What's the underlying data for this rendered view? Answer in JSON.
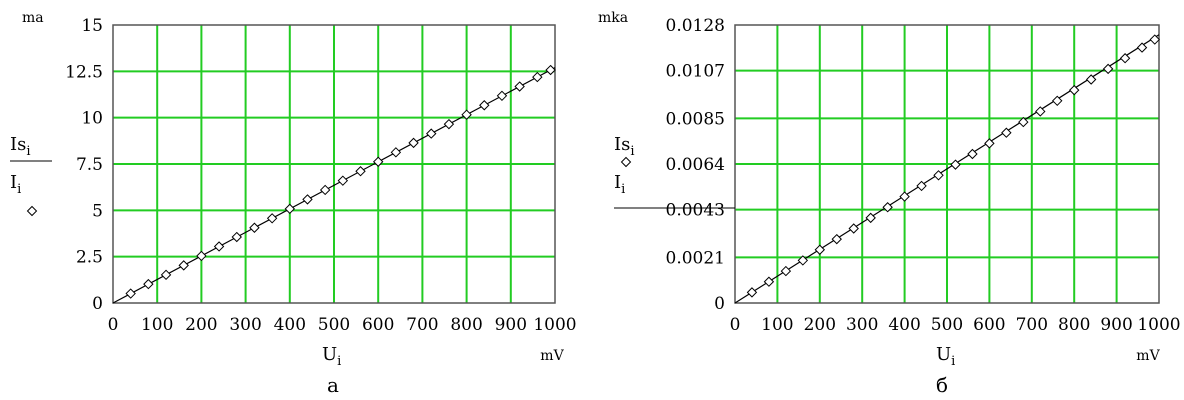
{
  "chart_data": [
    {
      "type": "line",
      "caption": "а",
      "y_unit": "ma",
      "x_unit": "mV",
      "xlabel": {
        "main": "U",
        "sub": "i"
      },
      "legend": [
        {
          "main": "Is",
          "sub": "i",
          "marker": "line"
        },
        {
          "main": "I",
          "sub": "i",
          "marker": "diamond"
        }
      ],
      "xlim": [
        0,
        1000
      ],
      "ylim": [
        0,
        15
      ],
      "x_ticks": [
        0,
        100,
        200,
        300,
        400,
        500,
        600,
        700,
        800,
        900,
        1000
      ],
      "y_ticks": [
        0,
        2.5,
        5,
        7.5,
        10,
        12.5,
        15
      ],
      "y_tick_labels": [
        "0",
        "2.5",
        "5",
        "7.5",
        "10",
        "12.5",
        "15"
      ],
      "grid": true,
      "series": [
        {
          "kind": "line",
          "x": [
            0,
            1000
          ],
          "y": [
            0,
            12.7
          ]
        },
        {
          "kind": "markers",
          "x": [
            40,
            80,
            120,
            160,
            200,
            240,
            280,
            320,
            360,
            400,
            440,
            480,
            520,
            560,
            600,
            640,
            680,
            720,
            760,
            800,
            840,
            880,
            920,
            960,
            990
          ],
          "y": [
            0.51,
            1.02,
            1.52,
            2.03,
            2.54,
            3.05,
            3.56,
            4.06,
            4.57,
            5.08,
            5.59,
            6.1,
            6.6,
            7.11,
            7.62,
            8.13,
            8.64,
            9.14,
            9.65,
            10.16,
            10.67,
            11.18,
            11.68,
            12.19,
            12.57
          ]
        }
      ]
    },
    {
      "type": "line",
      "caption": "б",
      "y_unit": "mka",
      "x_unit": "mV",
      "xlabel": {
        "main": "U",
        "sub": "i"
      },
      "legend": [
        {
          "main": "Is",
          "sub": "i",
          "marker": "diamond"
        },
        {
          "main": "I",
          "sub": "i",
          "marker": "line"
        }
      ],
      "xlim": [
        0,
        1000
      ],
      "ylim": [
        0,
        0.0128
      ],
      "x_ticks": [
        0,
        100,
        200,
        300,
        400,
        500,
        600,
        700,
        800,
        900,
        1000
      ],
      "y_ticks": [
        0,
        0.0021,
        0.0043,
        0.0064,
        0.0085,
        0.0107,
        0.0128
      ],
      "y_tick_labels": [
        "0",
        "0.0021",
        "0.0043",
        "0.0064",
        "0.0085",
        "0.0107",
        "0.0128"
      ],
      "grid": true,
      "series": [
        {
          "kind": "line",
          "x": [
            0,
            1000
          ],
          "y": [
            0,
            0.01235
          ]
        },
        {
          "kind": "markers",
          "x": [
            40,
            80,
            120,
            160,
            200,
            240,
            280,
            320,
            360,
            400,
            440,
            480,
            520,
            560,
            600,
            640,
            680,
            720,
            760,
            800,
            840,
            880,
            920,
            960,
            990
          ],
          "y": [
            0.00049,
            0.00098,
            0.00147,
            0.00196,
            0.00245,
            0.00294,
            0.00343,
            0.00392,
            0.00441,
            0.0049,
            0.00539,
            0.00588,
            0.00637,
            0.00686,
            0.00735,
            0.00784,
            0.00833,
            0.00882,
            0.00931,
            0.0098,
            0.01029,
            0.01078,
            0.01127,
            0.01176,
            0.01213
          ]
        }
      ]
    }
  ]
}
